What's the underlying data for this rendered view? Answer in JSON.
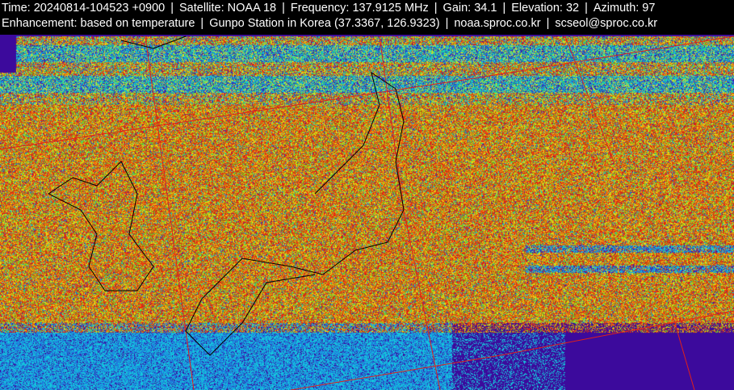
{
  "header": {
    "line1": [
      "Time: 20240814-104523 +0900",
      "Satellite: NOAA 18",
      "Frequency: 137.9125 MHz",
      "Gain: 34.1",
      "Elevation: 32",
      "Azimuth: 97"
    ],
    "line2": [
      "Enhancement: based on temperature",
      "Gunpo Station in Korea (37.3367, 126.9323)",
      "noaa.sproc.co.kr",
      "scseol@sproc.co.kr"
    ],
    "separator": "|"
  },
  "image": {
    "subject": "NOAA APT satellite image over Korea and Japan",
    "colors": {
      "background": "#3c0a9c",
      "gridline": "#e0201a",
      "coastline": "#000000"
    }
  }
}
